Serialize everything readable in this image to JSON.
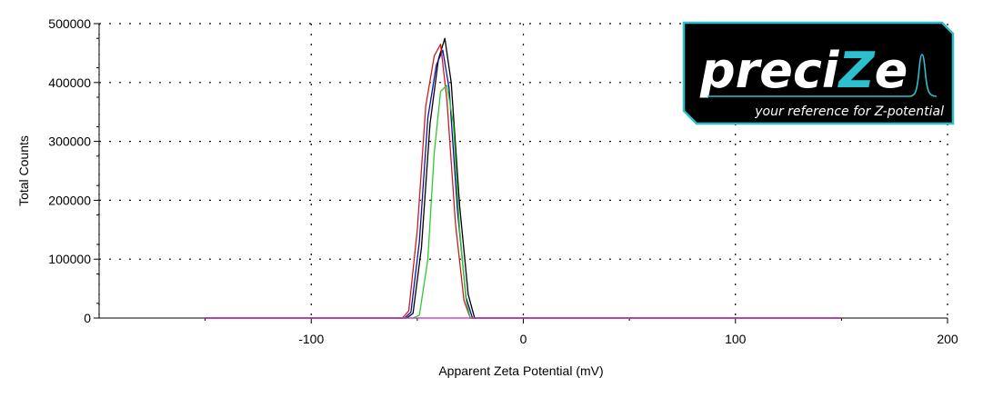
{
  "chart_data": {
    "type": "line",
    "title": "",
    "xlabel": "Apparent Zeta Potential (mV)",
    "ylabel": "Total Counts",
    "xlim": [
      -200,
      200
    ],
    "ylim": [
      0,
      500000
    ],
    "x_ticks": [
      -100,
      0,
      100,
      200
    ],
    "y_ticks": [
      0,
      100000,
      200000,
      300000,
      400000,
      500000
    ],
    "x_tick_labels": [
      "-100",
      "0",
      "100",
      "200"
    ],
    "y_tick_labels": [
      "0",
      "100000",
      "200000",
      "300000",
      "400000",
      "500000"
    ],
    "grid": true,
    "legend": "none",
    "series": [
      {
        "color": "#000000",
        "x": [
          -150,
          -55,
          -52,
          -48,
          -44,
          -40,
          -37,
          -34,
          -30,
          -26,
          -23,
          150
        ],
        "y": [
          0,
          0,
          8000,
          120000,
          330000,
          440000,
          475000,
          400000,
          190000,
          40000,
          0,
          0
        ]
      },
      {
        "color": "#1010a0",
        "x": [
          -150,
          -56,
          -53,
          -49,
          -45,
          -41,
          -38,
          -35,
          -31,
          -27,
          -24,
          150
        ],
        "y": [
          0,
          0,
          10000,
          130000,
          340000,
          430000,
          455000,
          390000,
          180000,
          35000,
          0,
          0
        ]
      },
      {
        "color": "#c81e1e",
        "x": [
          -150,
          -57,
          -54,
          -50,
          -46,
          -42,
          -39,
          -36,
          -32,
          -28,
          -25,
          150
        ],
        "y": [
          0,
          0,
          12000,
          150000,
          360000,
          445000,
          465000,
          370000,
          160000,
          30000,
          0,
          0
        ]
      },
      {
        "color": "#2ccc2c",
        "x": [
          -150,
          -52,
          -49,
          -45,
          -42,
          -39,
          -36,
          -33,
          -30,
          -27,
          -25,
          150
        ],
        "y": [
          0,
          0,
          5000,
          100000,
          280000,
          385000,
          395000,
          330000,
          150000,
          30000,
          0,
          0
        ]
      },
      {
        "color": "#cc22cc",
        "x": [
          -150,
          150
        ],
        "y": [
          0,
          0
        ]
      }
    ]
  },
  "logo": {
    "brand_prefix": "preci",
    "brand_z": "Z",
    "brand_suffix": "e",
    "tagline": "your reference for Z-potential",
    "bg_color": "#000000",
    "border_color": "#2bbfd0",
    "accent_color": "#2bbfd0"
  }
}
